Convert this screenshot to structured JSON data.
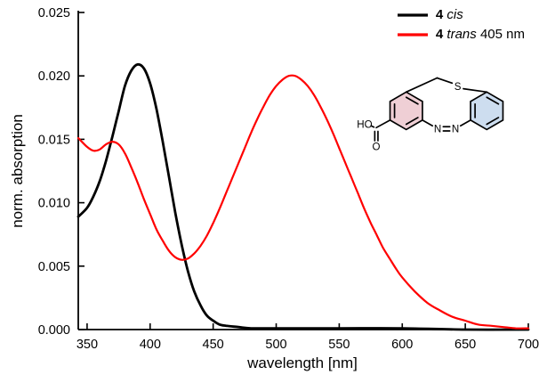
{
  "figure": {
    "x_axis_label": "wavelength [nm]",
    "y_axis_label": "norm. absorption"
  },
  "legend": {
    "items": [
      {
        "bold": "4",
        "italic": "cis",
        "suffix": "",
        "color": "#000000"
      },
      {
        "bold": "4",
        "italic": "trans",
        "suffix": "405 nm",
        "color": "#ff0000"
      }
    ]
  },
  "molecule": {
    "label_ho": "HO",
    "label_o": "O",
    "label_s": "S",
    "label_n1": "N",
    "label_n2": "N",
    "highlight_left": "#dfa0ac",
    "highlight_right": "#9bbcdf"
  },
  "chart_data": {
    "type": "line",
    "title": "",
    "xlabel": "wavelength [nm]",
    "ylabel": "norm. absorption",
    "xlim": [
      343,
      700
    ],
    "ylim": [
      0,
      0.025
    ],
    "x_ticks": [
      350,
      400,
      450,
      500,
      550,
      600,
      650,
      700
    ],
    "y_ticks": [
      0,
      0.005,
      0.01,
      0.015,
      0.02,
      0.025
    ],
    "y_tick_labels": [
      "0.000",
      "0.005",
      "0.010",
      "0.015",
      "0.020",
      "0.025"
    ],
    "grid": false,
    "legend_position": "top-right",
    "series": [
      {
        "name": "4 cis",
        "color": "#000000",
        "width": 2.8,
        "points": [
          [
            343,
            0.0089
          ],
          [
            350,
            0.0096
          ],
          [
            355,
            0.0105
          ],
          [
            360,
            0.0117
          ],
          [
            365,
            0.0133
          ],
          [
            370,
            0.0152
          ],
          [
            375,
            0.0172
          ],
          [
            380,
            0.0192
          ],
          [
            385,
            0.0204
          ],
          [
            390,
            0.0209
          ],
          [
            395,
            0.0206
          ],
          [
            400,
            0.0194
          ],
          [
            405,
            0.0174
          ],
          [
            410,
            0.0148
          ],
          [
            415,
            0.012
          ],
          [
            420,
            0.0092
          ],
          [
            425,
            0.0067
          ],
          [
            430,
            0.0046
          ],
          [
            435,
            0.003
          ],
          [
            440,
            0.0019
          ],
          [
            445,
            0.0011
          ],
          [
            450,
            0.0007
          ],
          [
            455,
            0.0004
          ],
          [
            460,
            0.0003
          ],
          [
            470,
            0.0002
          ],
          [
            480,
            0.0001
          ],
          [
            500,
            0.0001
          ],
          [
            550,
            0.0001
          ],
          [
            600,
            0.0001
          ],
          [
            650,
            0.0
          ],
          [
            700,
            0.0
          ]
        ]
      },
      {
        "name": "4 trans 405 nm",
        "color": "#ff0000",
        "width": 2.2,
        "points": [
          [
            343,
            0.0151
          ],
          [
            350,
            0.0144
          ],
          [
            355,
            0.0141
          ],
          [
            360,
            0.0142
          ],
          [
            365,
            0.0146
          ],
          [
            370,
            0.0148
          ],
          [
            375,
            0.0146
          ],
          [
            380,
            0.0139
          ],
          [
            385,
            0.0128
          ],
          [
            390,
            0.0116
          ],
          [
            395,
            0.0103
          ],
          [
            400,
            0.0091
          ],
          [
            405,
            0.0079
          ],
          [
            410,
            0.007
          ],
          [
            415,
            0.0062
          ],
          [
            420,
            0.0057
          ],
          [
            425,
            0.0055
          ],
          [
            430,
            0.0056
          ],
          [
            435,
            0.006
          ],
          [
            440,
            0.0066
          ],
          [
            445,
            0.0074
          ],
          [
            450,
            0.0084
          ],
          [
            455,
            0.0095
          ],
          [
            460,
            0.0107
          ],
          [
            465,
            0.0119
          ],
          [
            470,
            0.0131
          ],
          [
            475,
            0.0143
          ],
          [
            480,
            0.0155
          ],
          [
            485,
            0.0166
          ],
          [
            490,
            0.0176
          ],
          [
            495,
            0.0185
          ],
          [
            500,
            0.0192
          ],
          [
            505,
            0.0197
          ],
          [
            510,
            0.02
          ],
          [
            515,
            0.02
          ],
          [
            520,
            0.0197
          ],
          [
            525,
            0.0192
          ],
          [
            530,
            0.0185
          ],
          [
            535,
            0.0176
          ],
          [
            540,
            0.0166
          ],
          [
            545,
            0.0155
          ],
          [
            550,
            0.0143
          ],
          [
            555,
            0.0131
          ],
          [
            560,
            0.0119
          ],
          [
            565,
            0.0107
          ],
          [
            570,
            0.0095
          ],
          [
            575,
            0.0084
          ],
          [
            580,
            0.0074
          ],
          [
            585,
            0.0064
          ],
          [
            590,
            0.0056
          ],
          [
            595,
            0.0048
          ],
          [
            600,
            0.0041
          ],
          [
            610,
            0.003
          ],
          [
            620,
            0.0021
          ],
          [
            630,
            0.0015
          ],
          [
            640,
            0.001
          ],
          [
            650,
            0.0007
          ],
          [
            660,
            0.0004
          ],
          [
            670,
            0.0003
          ],
          [
            680,
            0.0002
          ],
          [
            690,
            0.0001
          ],
          [
            700,
            0.0001
          ]
        ]
      }
    ]
  }
}
